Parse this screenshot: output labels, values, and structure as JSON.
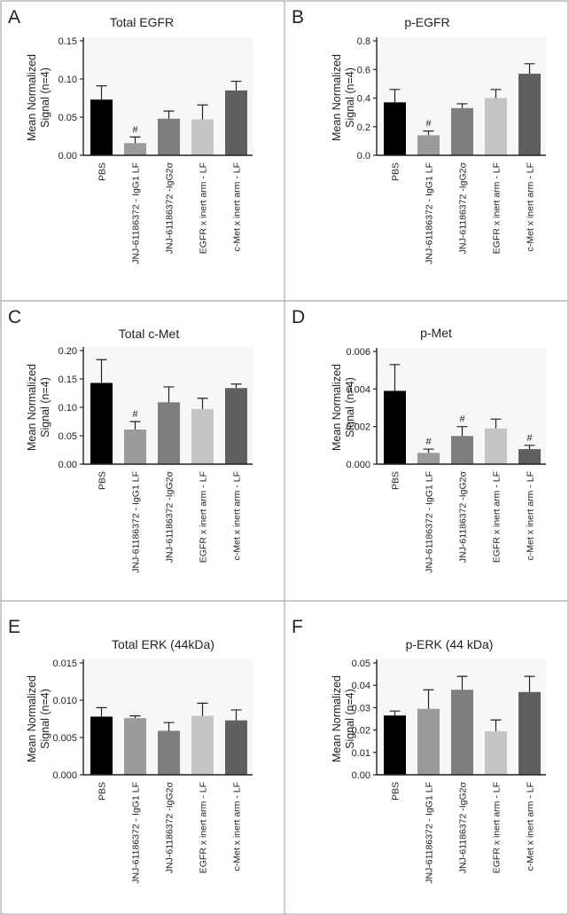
{
  "colors": {
    "bars": [
      "#000000",
      "#9b9b9b",
      "#7e7e7e",
      "#c4c4c4",
      "#5f5f5f"
    ],
    "errorbar": "#222222",
    "plot_bg": "#f7f7f7"
  },
  "chart_data": [
    {
      "type": "bar",
      "panel": "A",
      "title": "Total EGFR",
      "ylabel": "Mean Normalized Signal (n=4)",
      "ylabel_lines": [
        "Mean Normalized",
        "Signal (n=4)"
      ],
      "categories": [
        "PBS",
        "JNJ-61186372 - IgG1 LF",
        "JNJ-61186372 -IgG2σ",
        "EGFR x inert arm - LF",
        "c-Met x inert arm - LF"
      ],
      "values": [
        0.073,
        0.016,
        0.048,
        0.047,
        0.085
      ],
      "errors": [
        0.018,
        0.008,
        0.01,
        0.019,
        0.012
      ],
      "annotations": [
        "",
        "#",
        "",
        "",
        ""
      ],
      "ylim": [
        0,
        0.15
      ],
      "yticks": [
        0.0,
        0.05,
        0.1,
        0.15
      ],
      "ytick_labels": [
        "0.00",
        "0.05",
        "0.10",
        "0.15"
      ]
    },
    {
      "type": "bar",
      "panel": "B",
      "title": "p-EGFR",
      "ylabel": "Mean Normalized Signal (n=4)",
      "ylabel_lines": [
        "Mean Normalized",
        "Signal (n=4)"
      ],
      "categories": [
        "PBS",
        "JNJ-61186372 - IgG1 LF",
        "JNJ-61186372 -IgG2σ",
        "EGFR x inert arm - LF",
        "c-Met x inert arm - LF"
      ],
      "values": [
        0.37,
        0.14,
        0.33,
        0.4,
        0.57
      ],
      "errors": [
        0.09,
        0.03,
        0.03,
        0.06,
        0.07
      ],
      "annotations": [
        "",
        "#",
        "",
        "",
        ""
      ],
      "ylim": [
        0,
        0.8
      ],
      "yticks": [
        0.0,
        0.2,
        0.4,
        0.6,
        0.8
      ],
      "ytick_labels": [
        "0.0",
        "0.2",
        "0.4",
        "0.6",
        "0.8"
      ]
    },
    {
      "type": "bar",
      "panel": "C",
      "title": "Total c-Met",
      "ylabel": "Mean Normalized Signal (n=4)",
      "ylabel_lines": [
        "Mean Normalized",
        "Signal (n=4)"
      ],
      "categories": [
        "PBS",
        "JNJ-61186372 - IgG1 LF",
        "JNJ-61186372 -IgG2σ",
        "EGFR x inert arm - LF",
        "c-Met x inert arm - LF"
      ],
      "values": [
        0.143,
        0.061,
        0.109,
        0.097,
        0.134
      ],
      "errors": [
        0.041,
        0.014,
        0.027,
        0.019,
        0.007
      ],
      "annotations": [
        "",
        "#",
        "",
        "",
        ""
      ],
      "ylim": [
        0,
        0.2
      ],
      "yticks": [
        0.0,
        0.05,
        0.1,
        0.15,
        0.2
      ],
      "ytick_labels": [
        "0.00",
        "0.05",
        "0.10",
        "0.15",
        "0.20"
      ]
    },
    {
      "type": "bar",
      "panel": "D",
      "title": "p-Met",
      "ylabel": "Mean Normalized Signal (n=4)",
      "ylabel_lines": [
        "Mean Normalized",
        "Signal (n=4)"
      ],
      "categories": [
        "PBS",
        "JNJ-61186372 - IgG1 LF",
        "JNJ-61186372 -IgG2σ",
        "EGFR x inert arm - LF",
        "c-Met x inert arm - LF"
      ],
      "values": [
        0.0039,
        0.0006,
        0.0015,
        0.0019,
        0.0008
      ],
      "errors": [
        0.0014,
        0.0002,
        0.0005,
        0.0005,
        0.0002
      ],
      "annotations": [
        "",
        "#",
        "#",
        "",
        "#"
      ],
      "ylim": [
        0,
        0.006
      ],
      "yticks": [
        0.0,
        0.002,
        0.004,
        0.006
      ],
      "ytick_labels": [
        "0.000",
        "0.002",
        "0.004",
        "0.006"
      ]
    },
    {
      "type": "bar",
      "panel": "E",
      "title": "Total ERK (44kDa)",
      "ylabel": "Mean Normalized Signal (n=4)",
      "ylabel_lines": [
        "Mean Normalized",
        "Signal (n=4)"
      ],
      "categories": [
        "PBS",
        "JNJ-61186372 - IgG1 LF",
        "JNJ-61186372 -IgG2σ",
        "EGFR x inert arm - LF",
        "c-Met x inert arm - LF"
      ],
      "values": [
        0.0078,
        0.0076,
        0.0059,
        0.0079,
        0.0073
      ],
      "errors": [
        0.0012,
        0.0003,
        0.0011,
        0.0017,
        0.0014
      ],
      "annotations": [
        "",
        "",
        "",
        "",
        ""
      ],
      "ylim": [
        0,
        0.015
      ],
      "yticks": [
        0.0,
        0.005,
        0.01,
        0.015
      ],
      "ytick_labels": [
        "0.000",
        "0.005",
        "0.010",
        "0.015"
      ]
    },
    {
      "type": "bar",
      "panel": "F",
      "title": "p-ERK (44 kDa)",
      "ylabel": "Mean Normalized Signal (n=4)",
      "ylabel_lines": [
        "Mean Normalized",
        "Signal (n=4)"
      ],
      "categories": [
        "PBS",
        "JNJ-61186372 - IgG1 LF",
        "JNJ-61186372 -IgG2σ",
        "EGFR x inert arm - LF",
        "c-Met x inert arm - LF"
      ],
      "values": [
        0.0265,
        0.0295,
        0.038,
        0.0195,
        0.037
      ],
      "errors": [
        0.002,
        0.0085,
        0.006,
        0.005,
        0.007
      ],
      "annotations": [
        "",
        "",
        "",
        "",
        ""
      ],
      "ylim": [
        0,
        0.05
      ],
      "yticks": [
        0.0,
        0.01,
        0.02,
        0.03,
        0.04,
        0.05
      ],
      "ytick_labels": [
        "0.00",
        "0.01",
        "0.02",
        "0.03",
        "0.04",
        "0.05"
      ]
    }
  ]
}
